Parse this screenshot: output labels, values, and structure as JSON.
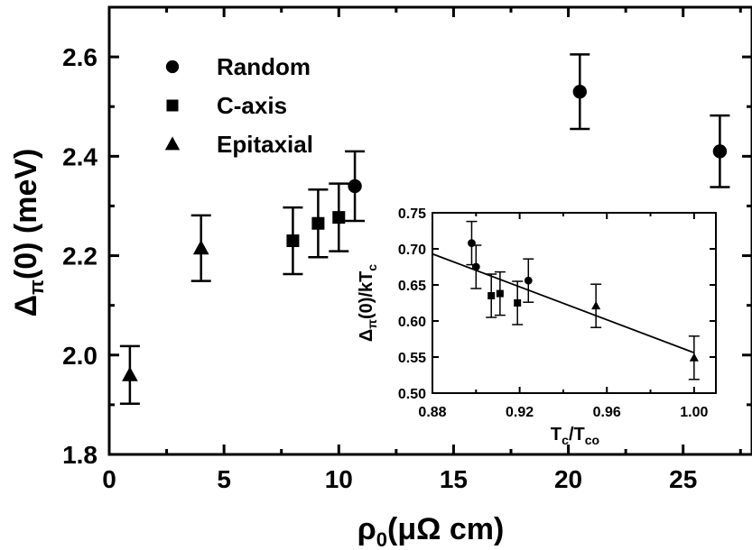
{
  "chart_data": [
    {
      "type": "scatter",
      "xlabel": "ρ0(μΩ cm)",
      "ylabel": "Δπ(0) (meV)",
      "xlim": [
        0,
        28
      ],
      "ylim": [
        1.8,
        2.7
      ],
      "x_ticks": [
        "0",
        "5",
        "10",
        "15",
        "20",
        "25"
      ],
      "y_ticks": [
        "1.8",
        "2.0",
        "2.2",
        "2.4",
        "2.6"
      ],
      "legend_position": "top-left",
      "series": [
        {
          "name": "Random",
          "marker": "circle",
          "points": [
            {
              "x": 10.7,
              "y": 2.34,
              "err": 0.07
            },
            {
              "x": 20.5,
              "y": 2.53,
              "err": 0.075
            },
            {
              "x": 26.6,
              "y": 2.41,
              "err": 0.072
            }
          ]
        },
        {
          "name": "C-axis",
          "marker": "square",
          "points": [
            {
              "x": 8.0,
              "y": 2.23,
              "err": 0.067
            },
            {
              "x": 9.1,
              "y": 2.265,
              "err": 0.068
            },
            {
              "x": 10.0,
              "y": 2.277,
              "err": 0.068
            }
          ]
        },
        {
          "name": "Epitaxial",
          "marker": "triangle",
          "points": [
            {
              "x": 0.9,
              "y": 1.96,
              "err": 0.058
            },
            {
              "x": 4.0,
              "y": 2.215,
              "err": 0.066
            }
          ]
        }
      ]
    },
    {
      "type": "scatter",
      "role": "inset",
      "xlabel": "Tc/Tco",
      "ylabel": "Δπ(0)/kTc",
      "xlim": [
        0.88,
        1.01
      ],
      "ylim": [
        0.5,
        0.75
      ],
      "x_ticks": [
        "0.88",
        "0.92",
        "0.96",
        "1.00"
      ],
      "y_ticks": [
        "0.50",
        "0.55",
        "0.60",
        "0.65",
        "0.70",
        "0.75"
      ],
      "fit_line": {
        "x": [
          0.88,
          1.0
        ],
        "y": [
          0.693,
          0.556
        ]
      },
      "series": [
        {
          "name": "Random",
          "marker": "circle",
          "points": [
            {
              "x": 0.898,
              "y": 0.708,
              "err": 0.03
            },
            {
              "x": 0.9,
              "y": 0.675,
              "err": 0.03
            },
            {
              "x": 0.924,
              "y": 0.656,
              "err": 0.03
            }
          ]
        },
        {
          "name": "C-axis",
          "marker": "square",
          "points": [
            {
              "x": 0.907,
              "y": 0.635,
              "err": 0.03
            },
            {
              "x": 0.911,
              "y": 0.638,
              "err": 0.03
            },
            {
              "x": 0.919,
              "y": 0.625,
              "err": 0.03
            }
          ]
        },
        {
          "name": "Epitaxial",
          "marker": "triangle",
          "points": [
            {
              "x": 0.955,
              "y": 0.621,
              "err": 0.03
            },
            {
              "x": 1.0,
              "y": 0.549,
              "err": 0.03
            }
          ]
        }
      ]
    }
  ]
}
